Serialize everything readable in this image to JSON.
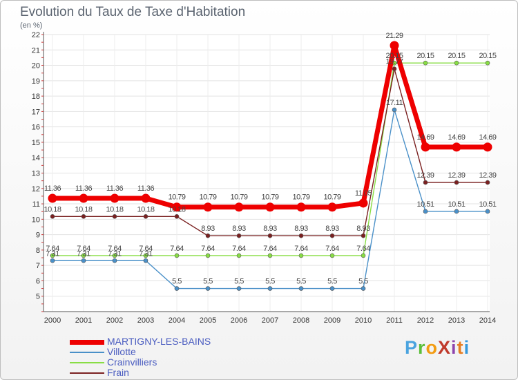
{
  "header": {
    "title": "Evolution du Taux de Taxe d'Habitation",
    "subtitle": "(en %)"
  },
  "logo": {
    "text": "ProXiti",
    "letter_colors": [
      "#4aa3df",
      "#5bbf3a",
      "#f39c12",
      "#c0392b",
      "#8e44ad",
      "#e67e22",
      "#3498db"
    ]
  },
  "chart_data": {
    "type": "line",
    "title": "Evolution du Taux de Taxe d'Habitation",
    "ylabel": "(en %)",
    "xlabel": "",
    "x": [
      "2000",
      "2001",
      "2002",
      "2003",
      "2004",
      "2005",
      "2006",
      "2007",
      "2008",
      "2009",
      "2010",
      "2011",
      "2012",
      "2013",
      "2014"
    ],
    "ylim": [
      4,
      22
    ],
    "yticks": [
      "5",
      "6",
      "7",
      "8",
      "9",
      "10",
      "11",
      "12",
      "13",
      "14",
      "15",
      "16",
      "17",
      "18",
      "19",
      "20",
      "21",
      "22"
    ],
    "grid": true,
    "legend_position": "bottom-left",
    "series": [
      {
        "name": "MARTIGNY-LES-BAINS",
        "color": "#ee0000",
        "emphasis": true,
        "values": [
          11.36,
          11.36,
          11.36,
          11.36,
          10.79,
          10.79,
          10.79,
          10.79,
          10.79,
          10.79,
          11.05,
          21.29,
          14.69,
          14.69,
          14.69
        ],
        "labels": [
          "11.36",
          "11.36",
          "11.36",
          "11.36",
          "10.79",
          "10.79",
          "10.79",
          "10.79",
          "10.79",
          "10.79",
          "11.05",
          "21.29",
          "14.69",
          "14.69",
          "14.69"
        ]
      },
      {
        "name": "Villotte",
        "color": "#4a90c8",
        "values": [
          7.31,
          7.31,
          7.31,
          7.31,
          5.5,
          5.5,
          5.5,
          5.5,
          5.5,
          5.5,
          5.5,
          17.11,
          10.51,
          10.51,
          10.51
        ],
        "labels": [
          "7.31",
          "7.31",
          "7.31",
          "7.31",
          "5.5",
          "5.5",
          "5.5",
          "5.5",
          "5.5",
          "5.5",
          "5.5",
          "17.11",
          "10.51",
          "10.51",
          "10.51"
        ]
      },
      {
        "name": "Crainvilliers",
        "color": "#88dd44",
        "values": [
          7.64,
          7.64,
          7.64,
          7.64,
          7.64,
          7.64,
          7.64,
          7.64,
          7.64,
          7.64,
          7.64,
          20.15,
          20.15,
          20.15,
          20.15
        ],
        "labels": [
          "7.64",
          "7.64",
          "7.64",
          "7.64",
          "7.64",
          "7.64",
          "7.64",
          "7.64",
          "7.64",
          "7.64",
          "7.64",
          "20.15",
          "20.15",
          "20.15",
          "20.15"
        ]
      },
      {
        "name": "Frain",
        "color": "#7a2020",
        "values": [
          10.18,
          10.18,
          10.18,
          10.18,
          10.18,
          8.93,
          8.93,
          8.93,
          8.93,
          8.93,
          8.93,
          19.77,
          12.39,
          12.39,
          12.39
        ],
        "labels": [
          "10.18",
          "10.18",
          "10.18",
          "10.18",
          "10.18",
          "8.93",
          "8.93",
          "8.93",
          "8.93",
          "8.93",
          "8.93",
          "19.77",
          "12.39",
          "12.39",
          "12.39"
        ]
      }
    ]
  }
}
